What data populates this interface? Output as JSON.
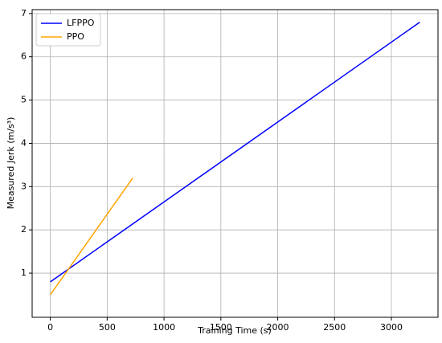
{
  "chart_data": {
    "type": "line",
    "xlabel": "Training Time (s)",
    "ylabel": "Measured Jerk (m/s³)",
    "series": [
      {
        "name": "LFPPO",
        "color": "#0000ff",
        "x": [
          0,
          3250
        ],
        "values": [
          0.8,
          6.8
        ]
      },
      {
        "name": "PPO",
        "color": "#ffa500",
        "x": [
          0,
          725
        ],
        "values": [
          0.5,
          3.2
        ]
      }
    ],
    "xlim": [
      -160,
      3410
    ],
    "ylim": [
      -0.02,
      7.09
    ],
    "xticks": [
      0,
      500,
      1000,
      1500,
      2000,
      2500,
      3000
    ],
    "yticks": [
      1,
      2,
      3,
      4,
      5,
      6,
      7
    ],
    "grid": true,
    "legend": "upper-left"
  }
}
